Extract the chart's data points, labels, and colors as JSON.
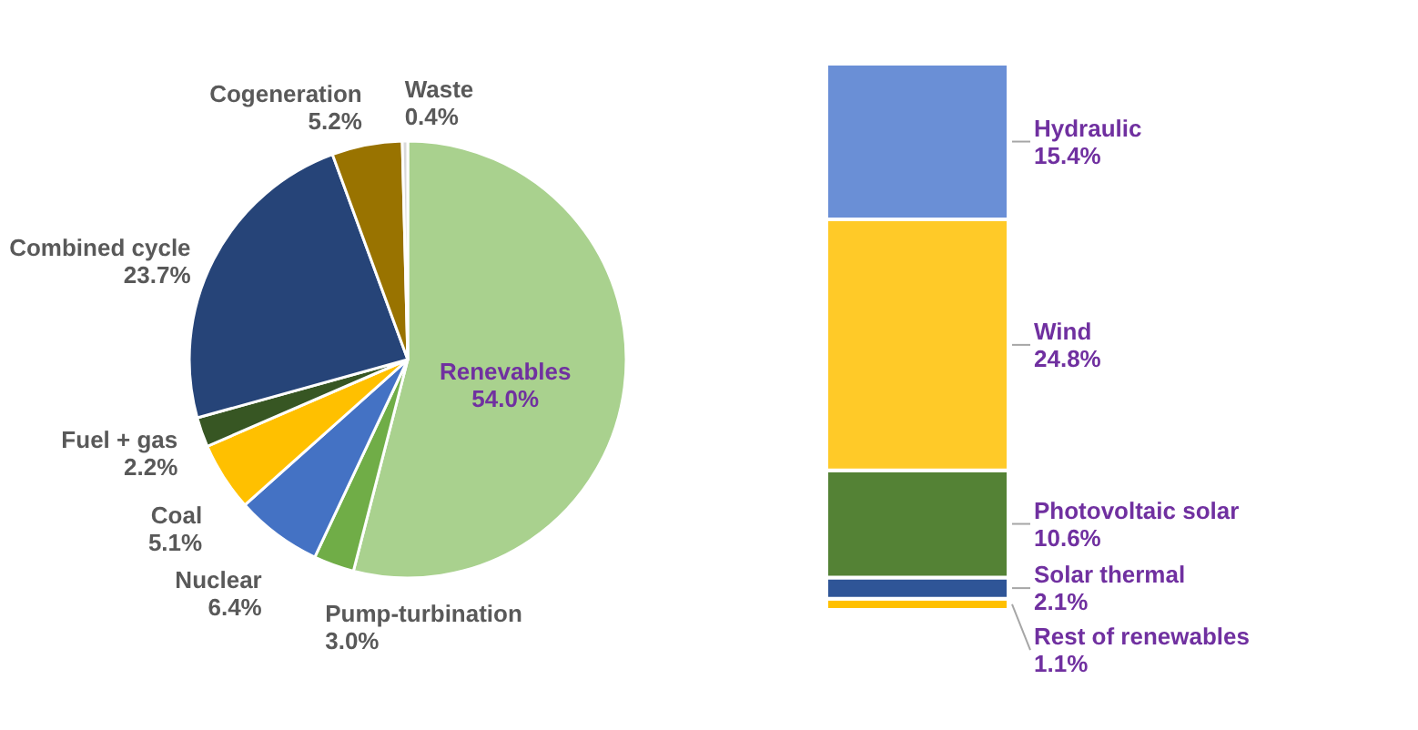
{
  "chart_data": [
    {
      "type": "pie",
      "categories": [
        "Renevables",
        "Pump-turbination",
        "Nuclear",
        "Coal",
        "Fuel + gas",
        "Combined cycle",
        "Cogeneration",
        "Waste"
      ],
      "values": [
        54.0,
        3.0,
        6.4,
        5.1,
        2.2,
        23.7,
        5.2,
        0.4
      ],
      "colors": [
        "#a9d18e",
        "#70ad47",
        "#4472c4",
        "#ffc000",
        "#375623",
        "#264478",
        "#997300",
        "#d9d9d9"
      ],
      "value_labels": [
        "54.0%",
        "3.0%",
        "6.4%",
        "5.1%",
        "2.2%",
        "23.7%",
        "5.2%",
        "0.4%"
      ]
    },
    {
      "type": "bar",
      "stacked": true,
      "categories": [
        null
      ],
      "series": [
        {
          "name": "Rest of renewables",
          "color": "#ffc000",
          "values": [
            1.1
          ],
          "value_labels": [
            "1.1%"
          ]
        },
        {
          "name": "Solar thermal",
          "color": "#2f5597",
          "values": [
            2.1
          ],
          "value_labels": [
            "2.1%"
          ]
        },
        {
          "name": "Photovoltaic solar",
          "color": "#548235",
          "values": [
            10.6
          ],
          "value_labels": [
            "10.6%"
          ]
        },
        {
          "name": "Wind",
          "color": "#ffca28",
          "values": [
            24.8
          ],
          "value_labels": [
            "24.8%"
          ]
        },
        {
          "name": "Hydraulic",
          "color": "#6a8fd6",
          "values": [
            15.4
          ],
          "value_labels": [
            "15.4%"
          ]
        }
      ]
    }
  ]
}
